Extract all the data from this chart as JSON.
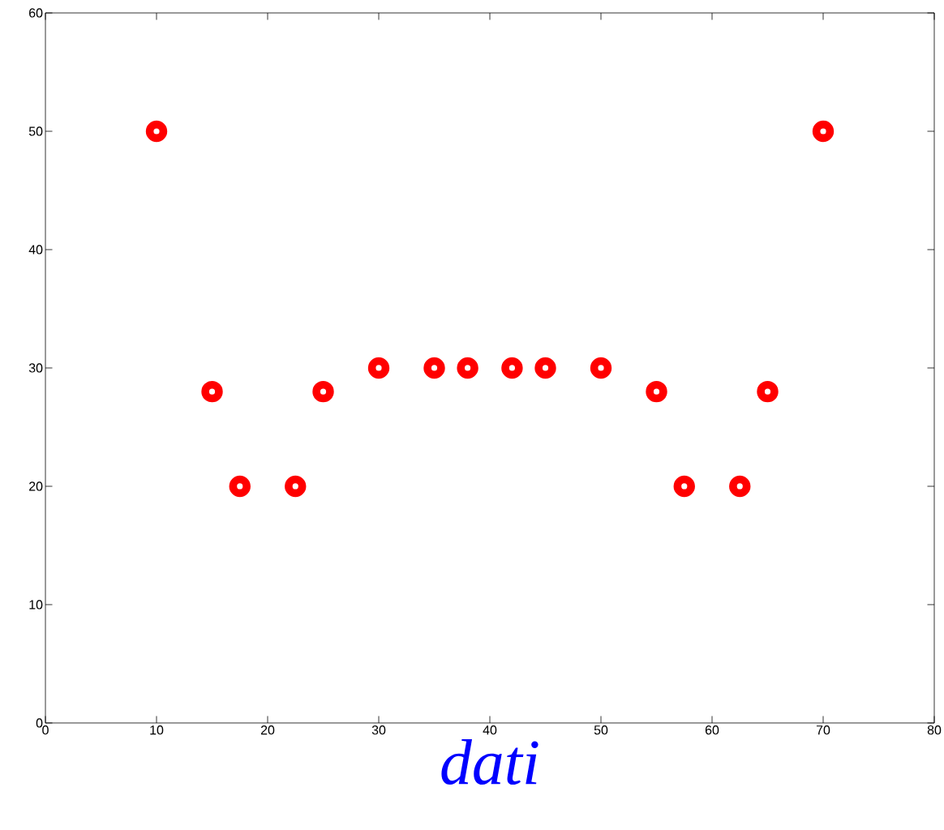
{
  "chart_data": {
    "type": "scatter",
    "xlabel": "dati",
    "x": [
      10,
      15,
      17.5,
      22.5,
      25,
      30,
      35,
      38,
      42,
      45,
      50,
      55,
      57.5,
      62.5,
      65,
      70
    ],
    "series": [
      {
        "color": "#ff0000",
        "values": [
          50,
          28,
          20,
          20,
          28,
          30,
          30,
          30,
          30,
          30,
          30,
          28,
          20,
          20,
          28,
          50
        ]
      }
    ],
    "marker": "circle",
    "xlim": [
      0,
      80
    ],
    "ylim": [
      0,
      60
    ],
    "xticks": [
      0,
      10,
      20,
      30,
      40,
      50,
      60,
      70,
      80
    ],
    "yticks": [
      0,
      10,
      20,
      30,
      40,
      50,
      60
    ]
  }
}
